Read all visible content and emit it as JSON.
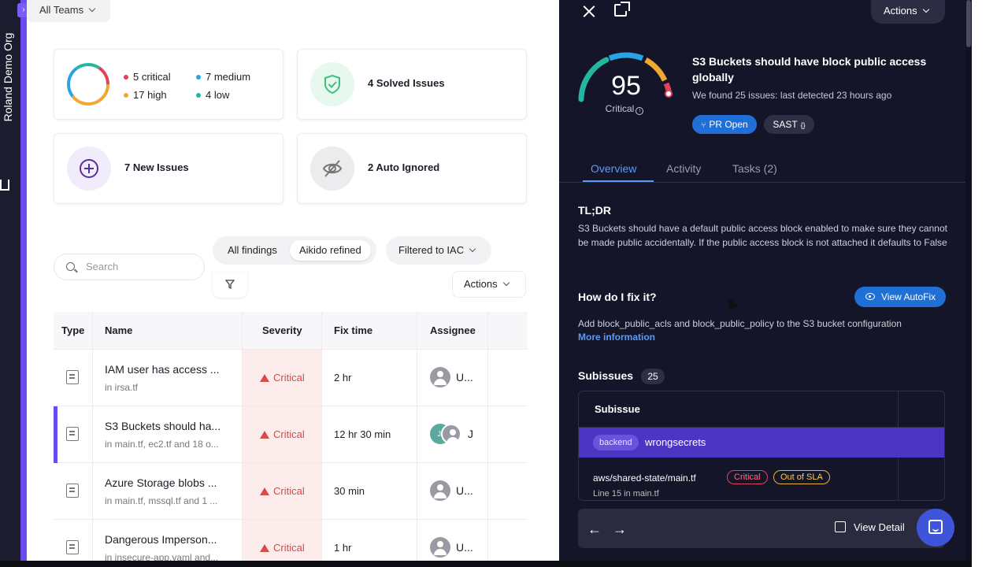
{
  "sidebar": {
    "org_name": "Roland Demo Org",
    "toggle_icon": "chevron-right-icon",
    "home_icon": "home-icon"
  },
  "filters": {
    "team": "All Teams",
    "search_placeholder": "Search",
    "segment": [
      "All findings",
      "Aikido refined"
    ],
    "scope": "Filtered to IAC",
    "actions": "Actions"
  },
  "summary": {
    "severity": {
      "critical": "5 critical",
      "medium": "7 medium",
      "high": "17 high",
      "low": "4 low",
      "colors": {
        "critical": "#e0445a",
        "medium": "#2aa3e6",
        "high": "#f0a830",
        "low": "#23b7a0"
      }
    },
    "solved": "4 Solved Issues",
    "new": "7 New Issues",
    "ignored": "2 Auto Ignored"
  },
  "table": {
    "headers": {
      "type": "Type",
      "name": "Name",
      "severity": "Severity",
      "fix_time": "Fix time",
      "assignee": "Assignee"
    },
    "rows": [
      {
        "name": "IAM user has access ...",
        "file": "in irsa.tf",
        "severity": "Critical",
        "fix_time": "2 hr",
        "assignee": "U...",
        "avatar": ""
      },
      {
        "name": "S3 Buckets should ha...",
        "file": "in main.tf, ec2.tf and 18 o...",
        "severity": "Critical",
        "fix_time": "12 hr 30 min",
        "assignee": "J",
        "avatar": "JI"
      },
      {
        "name": "Azure Storage blobs ...",
        "file": "in main.tf, mssql.tf and 1 ...",
        "severity": "Critical",
        "fix_time": "30 min",
        "assignee": "U...",
        "avatar": ""
      },
      {
        "name": "Dangerous Imperson...",
        "file": "in insecure-app.yaml and...",
        "severity": "Critical",
        "fix_time": "1 hr",
        "assignee": "U...",
        "avatar": ""
      }
    ]
  },
  "panel": {
    "actions": "Actions",
    "score": "95",
    "score_label": "Critical",
    "title": "S3 Buckets should have block public access globally",
    "subtitle": "We found 25 issues: last detected 23 hours ago",
    "badges": {
      "pr": "PR Open",
      "sast": "SAST"
    },
    "tabs": [
      "Overview",
      "Activity",
      "Tasks (2)"
    ],
    "tldr_heading": "TL;DR",
    "tldr_text": "S3 Buckets should have a default public access block enabled to make sure they cannot be made public accidentally.  If the public access block is not attached it defaults to False",
    "fix_heading": "How do I fix it?",
    "autofix_label": "View AutoFix",
    "fix_text": "Add block_public_acls and block_public_policy to the S3 bucket configuration",
    "more_info": "More information",
    "subissues_heading": "Subissues",
    "subissues_count": "25",
    "subissue_col": "Subissue",
    "group_tag": "backend",
    "group_name": "wrongsecrets",
    "sub_path": "aws/shared-state/main.tf",
    "sub_line": "Line 15 in main.tf",
    "tag_critical": "Critical",
    "tag_sla": "Out of SLA",
    "view_detail": "View Detail"
  }
}
